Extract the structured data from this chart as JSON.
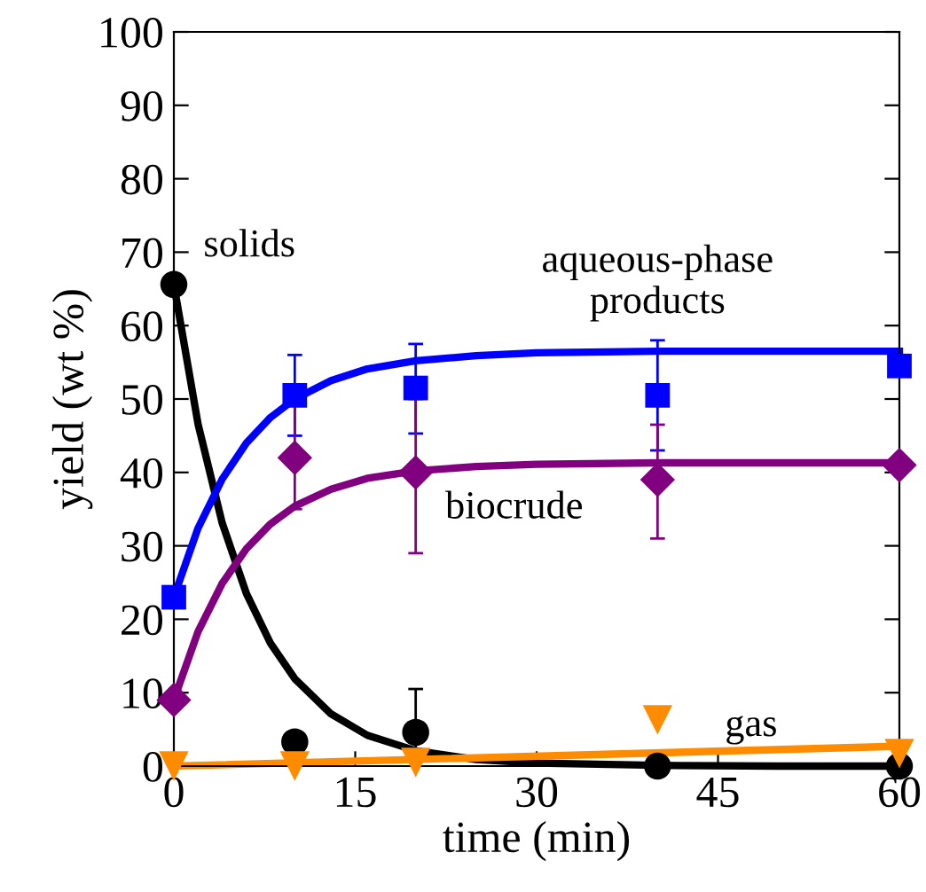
{
  "chart_data": {
    "type": "scatter",
    "xlabel": "time (min)",
    "ylabel": "yield (wt %)",
    "xlim": [
      0,
      60
    ],
    "ylim": [
      0,
      100
    ],
    "xticks": [
      0,
      15,
      30,
      45,
      60
    ],
    "yticks": [
      0,
      10,
      20,
      30,
      40,
      50,
      60,
      70,
      80,
      90,
      100
    ],
    "grid": false,
    "series": [
      {
        "name": "solids",
        "color": "#000000",
        "marker": "circle",
        "x": [
          0,
          10,
          20,
          40,
          60
        ],
        "values": [
          65.6,
          3.3,
          4.6,
          0,
          0
        ],
        "errors": [
          null,
          null,
          [
            2.0,
            10.5
          ],
          null,
          null
        ]
      },
      {
        "name": "aqueous-phase\nproducts",
        "color": "#0000ff",
        "marker": "square",
        "x": [
          0,
          10,
          20,
          40,
          60
        ],
        "values": [
          23,
          50.5,
          51.5,
          50.5,
          54.5
        ],
        "errors": [
          null,
          [
            45,
            56
          ],
          [
            45.3,
            57.5
          ],
          [
            43,
            58
          ],
          null
        ]
      },
      {
        "name": "biocrude",
        "color": "#800080",
        "marker": "diamond",
        "x": [
          0,
          10,
          20,
          40,
          60
        ],
        "values": [
          9,
          42,
          40,
          39,
          41
        ],
        "errors": [
          null,
          [
            35,
            49.5
          ],
          [
            29,
            50
          ],
          [
            31,
            46.5
          ],
          null
        ]
      },
      {
        "name": "gas",
        "color": "#ff8c00",
        "marker": "triangle",
        "x": [
          0,
          10,
          20,
          40,
          60
        ],
        "values": [
          0,
          0,
          0.5,
          6.3,
          1.7
        ]
      },
      {
        "type": "line",
        "color": "#000000",
        "x": [
          0,
          2,
          4,
          6,
          8,
          10,
          13,
          16,
          20,
          25,
          30,
          40,
          50,
          60
        ],
        "values": [
          65.6,
          46.6,
          33.1,
          23.5,
          16.7,
          11.9,
          7.1,
          4.2,
          2.1,
          0.9,
          0.4,
          0.1,
          0,
          0
        ]
      },
      {
        "type": "line",
        "color": "#0000ff",
        "x": [
          0,
          2,
          4,
          6,
          8,
          10,
          13,
          16,
          20,
          25,
          30,
          40,
          50,
          60
        ],
        "values": [
          23,
          32.4,
          39.1,
          44.0,
          47.5,
          50.0,
          52.5,
          54.1,
          55.2,
          55.9,
          56.3,
          56.5,
          56.5,
          56.5
        ]
      },
      {
        "type": "line",
        "color": "#800080",
        "x": [
          0,
          2,
          4,
          6,
          8,
          10,
          13,
          16,
          20,
          25,
          30,
          40,
          50,
          60
        ],
        "values": [
          9,
          18.3,
          24.9,
          29.6,
          33.0,
          35.4,
          37.7,
          39.2,
          40.2,
          40.8,
          41.1,
          41.3,
          41.3,
          41.3
        ]
      },
      {
        "type": "line",
        "color": "#ff8c00",
        "x": [
          0,
          60
        ],
        "values": [
          0,
          2.7
        ]
      }
    ]
  }
}
